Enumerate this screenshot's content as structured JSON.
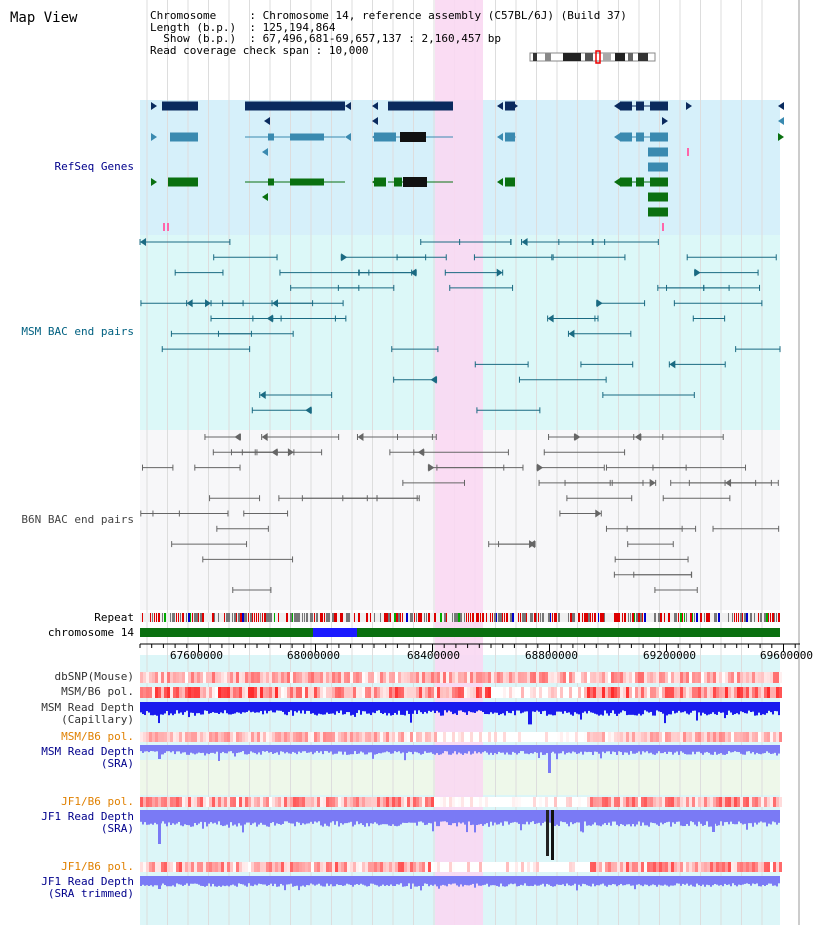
{
  "title": "Map View",
  "info": {
    "chromosome_key": "Chromosome",
    "chromosome_val": ": Chromosome 14, reference assembly (C57BL/6J) (Build 37)",
    "length_key": "Length (b.p.)",
    "length_val": ": 125,194,864",
    "show_key": "Show (b.p.)",
    "show_val": ": 67,496,681-69,657,137 : 2,160,457 bp",
    "coverage_key": "Read coverage check span",
    "coverage_val": ": 10,000"
  },
  "tracks": {
    "refseq": {
      "label": "RefSeq Genes",
      "color": "#00008b"
    },
    "msm_bac": {
      "label": "MSM BAC end pairs",
      "color": "#006080"
    },
    "b6n_bac": {
      "label": "B6N BAC end pairs",
      "color": "#444444"
    },
    "repeat": {
      "label": "Repeat"
    },
    "chromosome": {
      "label": "chromosome 14"
    },
    "dbsnp": {
      "label": "dbSNP(Mouse)"
    },
    "msm_b6_pol": {
      "label": "MSM/B6 pol."
    },
    "msm_depth_cap": {
      "label": "MSM Read Depth",
      "label2": "(Capillary)"
    },
    "msm_b6_pol2": {
      "label": "MSM/B6 pol.",
      "color": "#e08000"
    },
    "msm_depth_sra": {
      "label": "MSM Read Depth",
      "label2": "(SRA)",
      "color": "#00008b"
    },
    "jf1_b6_pol": {
      "label": "JF1/B6 pol.",
      "color": "#e08000"
    },
    "jf1_depth_sra": {
      "label": "JF1 Read Depth",
      "label2": "(SRA)",
      "color": "#00008b"
    },
    "jf1_b6_pol2": {
      "label": "JF1/B6 pol.",
      "color": "#e08000"
    },
    "jf1_depth_trim": {
      "label": "JF1 Read Depth",
      "label2": "(SRA trimmed)",
      "color": "#00008b"
    }
  },
  "axis": {
    "ticks": [
      "67600000",
      "68000000",
      "68400000",
      "68800000",
      "69200000",
      "69600000"
    ]
  },
  "colors": {
    "highlight": "#f9d8f2",
    "refseq_bg": "#d6f0fa",
    "msm_bg": "#dcf8f8",
    "gene_dark": "#0a2a5e",
    "gene_mid": "#3a8ab0",
    "gene_green": "#0a7010",
    "chromosome_green": "#0a7010",
    "chromosome_blue": "#1a1aff",
    "snp_red": "#ff3030",
    "depth_blue": "#1a1aee",
    "depth_light": "#7a7af5"
  }
}
